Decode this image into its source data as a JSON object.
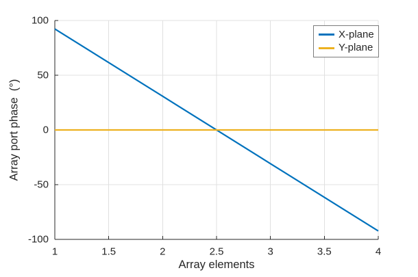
{
  "chart_data": {
    "type": "line",
    "x": [
      1,
      2,
      3,
      4
    ],
    "series": [
      {
        "name": "X-plane",
        "color": "#0072BD",
        "values": [
          92.3,
          30.8,
          -30.8,
          -92.3
        ]
      },
      {
        "name": "Y-plane",
        "color": "#EDB120",
        "values": [
          0,
          0,
          0,
          0
        ]
      }
    ],
    "title": "",
    "xlabel": "Array elements",
    "ylabel": "Array port phase  (°)",
    "xlim": [
      1,
      4
    ],
    "ylim": [
      -100,
      100
    ],
    "xticks": [
      1,
      1.5,
      2,
      2.5,
      3,
      3.5,
      4
    ],
    "xtick_labels": [
      "1",
      "1.5",
      "2",
      "2.5",
      "3",
      "3.5",
      "4"
    ],
    "yticks": [
      -100,
      -50,
      0,
      50,
      100
    ],
    "ytick_labels": [
      "-100",
      "-50",
      "0",
      "50",
      "100"
    ],
    "grid": true,
    "legend": {
      "position": "top-right-inside",
      "entries": [
        "X-plane",
        "Y-plane"
      ]
    },
    "colors": {
      "axis": "#262626",
      "grid": "#e0e0e0",
      "tick_label": "#262626",
      "legend_border": "#7b7b7b",
      "background": "#ffffff"
    }
  }
}
